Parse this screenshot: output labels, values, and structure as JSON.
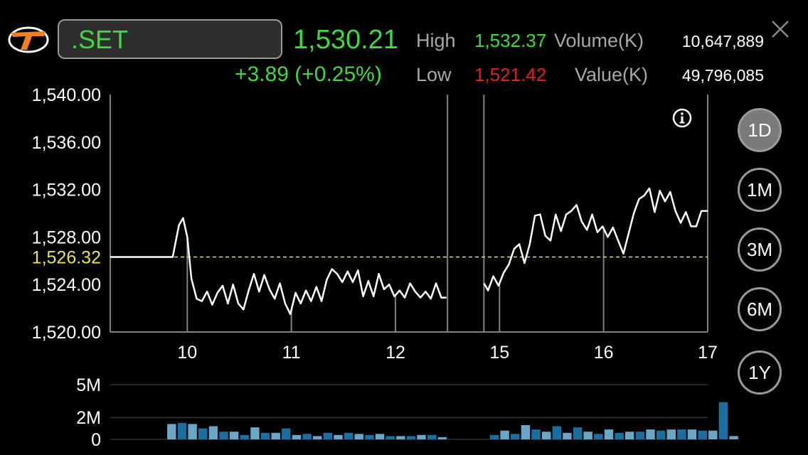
{
  "header": {
    "symbol": ".SET",
    "last_price": "1,530.21",
    "change": "+3.89 (+0.25%)",
    "high_label": "High",
    "high_value": "1,532.37",
    "low_label": "Low",
    "low_value": "1,521.42",
    "volume_label": "Volume(K)",
    "volume_value": "10,647,889",
    "value_label": "Value(K)",
    "value_value": "49,796,085"
  },
  "icons": {
    "logo": "logo-icon",
    "close": "close-icon",
    "info": "info-icon"
  },
  "colors": {
    "up": "#3ddc3d",
    "down": "#e02020",
    "previous_close": "#e6e35a",
    "volume_bar": "#1a6ea0",
    "volume_bar_light": "#6aa6c6"
  },
  "range_buttons": [
    {
      "label": "1D",
      "active": true
    },
    {
      "label": "1M",
      "active": false
    },
    {
      "label": "3M",
      "active": false
    },
    {
      "label": "6M",
      "active": false
    },
    {
      "label": "1Y",
      "active": false
    }
  ],
  "chart_data": [
    {
      "type": "line",
      "ylim": [
        1520,
        1540
      ],
      "y_ticks": [
        "1,540.00",
        "1,536.00",
        "1,532.00",
        "1,528.00",
        "1,524.00",
        "1,520.00"
      ],
      "y_tick_values": [
        1540,
        1536,
        1532,
        1528,
        1524,
        1520
      ],
      "previous_close_label": "1,526.32",
      "previous_close_value": 1526.32,
      "x_ticks": [
        "10",
        "11",
        "12",
        "15",
        "16",
        "17"
      ],
      "x_tick_positions": [
        1,
        2,
        3,
        4,
        5,
        6
      ],
      "x_range": [
        0.26,
        6
      ],
      "breaks": [
        3.5,
        3.85
      ],
      "series": [
        {
          "segment": "morning",
          "points": [
            [
              0.26,
              1526.32
            ],
            [
              0.86,
              1526.32
            ],
            [
              0.92,
              1529.0
            ],
            [
              0.96,
              1529.6
            ],
            [
              1.0,
              1528.0
            ],
            [
              1.04,
              1524.5
            ],
            [
              1.09,
              1522.8
            ],
            [
              1.14,
              1522.6
            ],
            [
              1.19,
              1523.4
            ],
            [
              1.24,
              1522.3
            ],
            [
              1.29,
              1523.3
            ],
            [
              1.34,
              1523.9
            ],
            [
              1.39,
              1522.4
            ],
            [
              1.44,
              1524.0
            ],
            [
              1.49,
              1522.4
            ],
            [
              1.54,
              1521.9
            ],
            [
              1.59,
              1523.5
            ],
            [
              1.64,
              1524.9
            ],
            [
              1.69,
              1523.4
            ],
            [
              1.74,
              1524.8
            ],
            [
              1.79,
              1523.6
            ],
            [
              1.84,
              1522.8
            ],
            [
              1.89,
              1524.1
            ],
            [
              1.94,
              1522.4
            ],
            [
              1.99,
              1521.5
            ],
            [
              2.04,
              1523.3
            ],
            [
              2.09,
              1522.4
            ],
            [
              2.14,
              1523.5
            ],
            [
              2.19,
              1522.6
            ],
            [
              2.24,
              1523.8
            ],
            [
              2.29,
              1522.6
            ],
            [
              2.34,
              1524.4
            ],
            [
              2.39,
              1525.3
            ],
            [
              2.44,
              1524.9
            ],
            [
              2.49,
              1524.2
            ],
            [
              2.54,
              1525.1
            ],
            [
              2.59,
              1524.2
            ],
            [
              2.64,
              1525.2
            ],
            [
              2.69,
              1523.0
            ],
            [
              2.74,
              1524.3
            ],
            [
              2.79,
              1523.0
            ],
            [
              2.84,
              1524.9
            ],
            [
              2.89,
              1523.6
            ],
            [
              2.94,
              1524.0
            ],
            [
              2.99,
              1523.0
            ],
            [
              3.04,
              1523.5
            ],
            [
              3.09,
              1522.9
            ],
            [
              3.14,
              1524.1
            ],
            [
              3.19,
              1523.4
            ],
            [
              3.24,
              1522.9
            ],
            [
              3.29,
              1523.4
            ],
            [
              3.34,
              1522.8
            ],
            [
              3.39,
              1524.1
            ],
            [
              3.44,
              1522.9
            ],
            [
              3.49,
              1522.9
            ]
          ]
        },
        {
          "segment": "afternoon",
          "points": [
            [
              3.85,
              1524.1
            ],
            [
              3.89,
              1523.5
            ],
            [
              3.94,
              1524.7
            ],
            [
              3.99,
              1523.9
            ],
            [
              4.04,
              1525.0
            ],
            [
              4.09,
              1525.7
            ],
            [
              4.14,
              1527.0
            ],
            [
              4.19,
              1527.4
            ],
            [
              4.24,
              1525.8
            ],
            [
              4.29,
              1527.4
            ],
            [
              4.34,
              1529.8
            ],
            [
              4.39,
              1529.9
            ],
            [
              4.44,
              1528.1
            ],
            [
              4.49,
              1527.7
            ],
            [
              4.54,
              1529.9
            ],
            [
              4.59,
              1528.5
            ],
            [
              4.64,
              1529.9
            ],
            [
              4.69,
              1530.2
            ],
            [
              4.74,
              1530.7
            ],
            [
              4.79,
              1529.3
            ],
            [
              4.84,
              1528.6
            ],
            [
              4.89,
              1529.9
            ],
            [
              4.94,
              1528.4
            ],
            [
              4.99,
              1528.9
            ],
            [
              5.04,
              1528.0
            ],
            [
              5.09,
              1528.8
            ],
            [
              5.14,
              1527.7
            ],
            [
              5.19,
              1526.6
            ],
            [
              5.24,
              1528.3
            ],
            [
              5.29,
              1530.0
            ],
            [
              5.34,
              1531.2
            ],
            [
              5.39,
              1531.5
            ],
            [
              5.44,
              1532.1
            ],
            [
              5.49,
              1530.1
            ],
            [
              5.54,
              1531.9
            ],
            [
              5.59,
              1531.0
            ],
            [
              5.64,
              1531.8
            ],
            [
              5.69,
              1530.2
            ],
            [
              5.74,
              1529.2
            ],
            [
              5.79,
              1530.1
            ],
            [
              5.84,
              1528.9
            ],
            [
              5.89,
              1528.9
            ],
            [
              5.94,
              1530.2
            ],
            [
              6.0,
              1530.2
            ]
          ]
        }
      ]
    },
    {
      "type": "bar",
      "ylim": [
        0,
        5
      ],
      "y_ticks": [
        "5M",
        "2M",
        "0"
      ],
      "y_tick_values": [
        5,
        2,
        0
      ],
      "values": [
        1.4,
        1.5,
        1.4,
        1.0,
        1.2,
        0.7,
        0.7,
        0.4,
        1.1,
        0.6,
        0.6,
        1.0,
        0.4,
        0.5,
        0.3,
        0.6,
        0.4,
        0.6,
        0.5,
        0.4,
        0.5,
        0.3,
        0.3,
        0.3,
        0.4,
        0.4,
        0.2,
        null,
        null,
        null,
        null,
        0.4,
        0.8,
        0.5,
        1.3,
        0.9,
        0.7,
        1.2,
        0.6,
        1.1,
        0.7,
        0.5,
        0.9,
        0.6,
        0.7,
        0.7,
        0.9,
        0.8,
        0.9,
        0.9,
        0.9,
        0.8,
        0.8,
        3.4,
        0.3
      ],
      "x_start": 0.85,
      "x_step": 0.1
    }
  ]
}
